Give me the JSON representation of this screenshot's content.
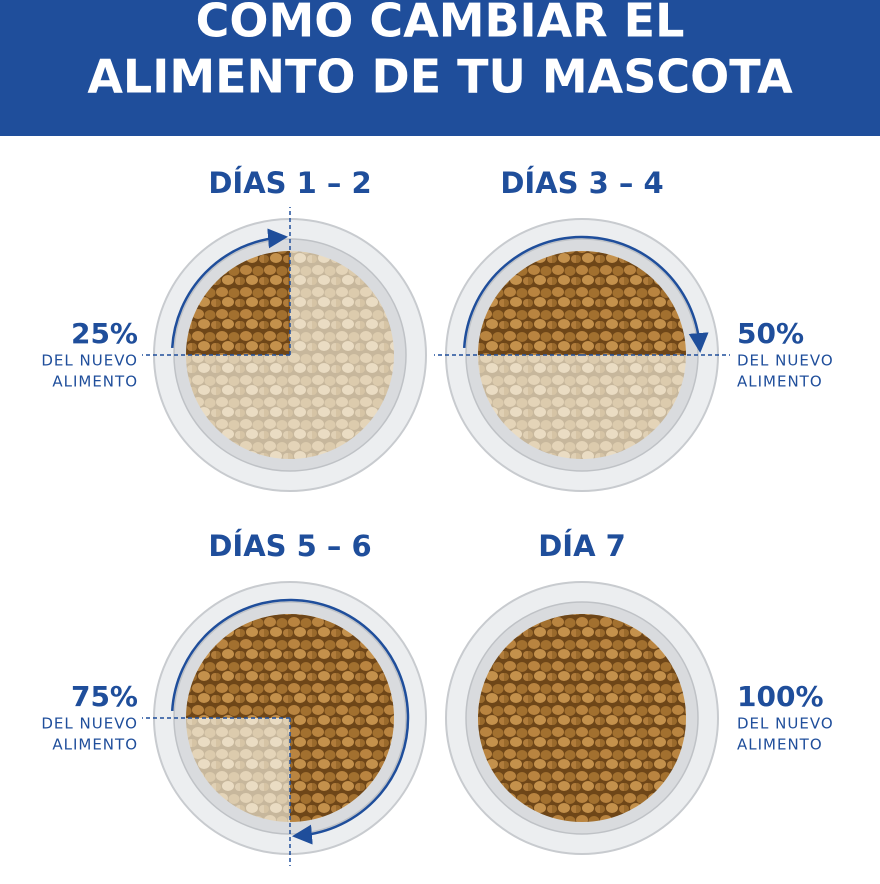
{
  "header": {
    "title_lines": [
      "COMO CAMBIAR EL",
      "ALIMENTO DE TU MASCOTA"
    ]
  },
  "panels": [
    {
      "days": "DÍAS 1 – 2",
      "new_food": {
        "value": 25,
        "label": "25%"
      },
      "description_lines": [
        "DEL NUEVO",
        "ALIMENTO"
      ]
    },
    {
      "days": "DÍAS 3 – 4",
      "new_food": {
        "value": 50,
        "label": "50%"
      },
      "description_lines": [
        "DEL NUEVO",
        "ALIMENTO"
      ]
    },
    {
      "days": "DÍAS 5 – 6",
      "new_food": {
        "value": 75,
        "label": "75%"
      },
      "description_lines": [
        "DEL NUEVO",
        "ALIMENTO"
      ]
    },
    {
      "days": "DÍA 7",
      "new_food": {
        "value": 100,
        "label": "100%"
      },
      "description_lines": [
        "DEL NUEVO",
        "ALIMENTO"
      ]
    }
  ]
}
